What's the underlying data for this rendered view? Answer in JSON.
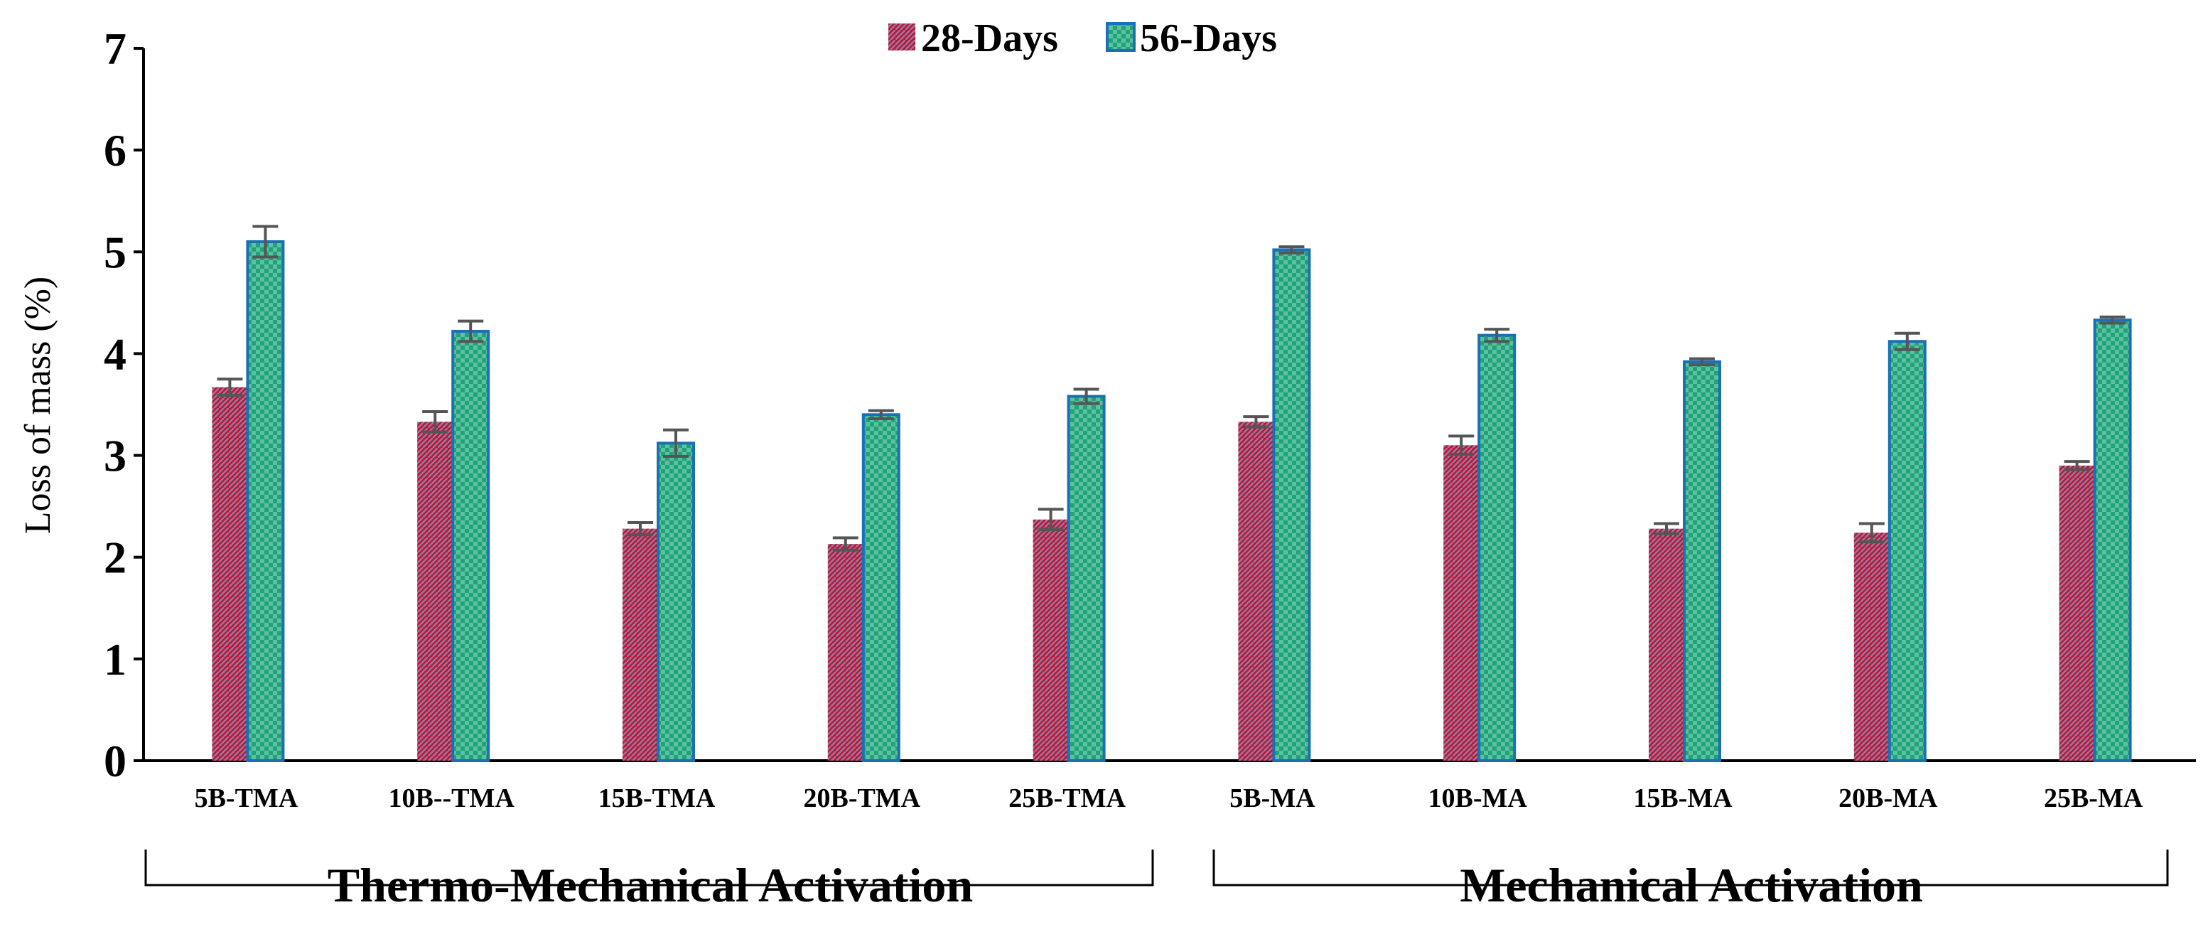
{
  "chart_data": {
    "type": "bar",
    "title": "",
    "xlabel": "",
    "ylabel": "Loss of mass  (%)",
    "ylim": [
      0,
      7
    ],
    "yticks": [
      0,
      1,
      2,
      3,
      4,
      5,
      6,
      7
    ],
    "grid": false,
    "legend_position": "top-center",
    "categories": [
      "5B-TMA",
      "10B--TMA",
      "15B-TMA",
      "20B-TMA",
      "25B-TMA",
      "5B-MA",
      "10B-MA",
      "15B-MA",
      "20B-MA",
      "25B-MA"
    ],
    "series": [
      {
        "name": "28-Days",
        "color": "#c8102e",
        "values": [
          3.67,
          3.33,
          2.28,
          2.13,
          2.37,
          3.33,
          3.1,
          2.28,
          2.24,
          2.9
        ],
        "errors": [
          0.08,
          0.1,
          0.06,
          0.06,
          0.1,
          0.05,
          0.09,
          0.05,
          0.09,
          0.04
        ]
      },
      {
        "name": "56-Days",
        "color": "#1fa37a",
        "values": [
          5.1,
          4.22,
          3.12,
          3.4,
          3.58,
          5.02,
          4.18,
          3.92,
          4.12,
          4.33
        ],
        "errors": [
          0.15,
          0.1,
          0.13,
          0.04,
          0.07,
          0.03,
          0.06,
          0.03,
          0.08,
          0.03
        ]
      }
    ],
    "groups": [
      {
        "label": "Thermo-Mechanical Activation",
        "categories": [
          0,
          4
        ]
      },
      {
        "label": "Mechanical Activation",
        "categories": [
          5,
          9
        ]
      }
    ]
  }
}
